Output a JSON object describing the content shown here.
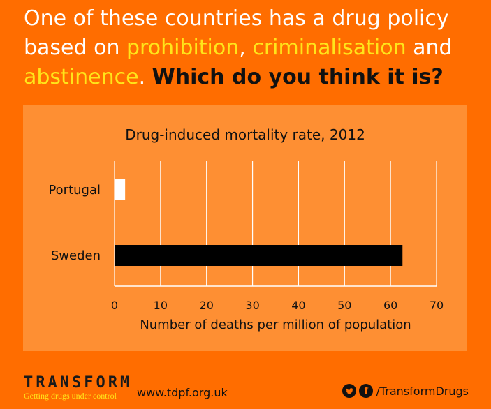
{
  "headline": {
    "part1": "One of these countries has a drug policy based on ",
    "highlight1": "prohibition",
    "sep1": ", ",
    "highlight2": "criminalisation",
    "sep2": " and ",
    "highlight3": "abstinence",
    "sep3": ". ",
    "question": "Which do you think it is?"
  },
  "chart_data": {
    "type": "bar",
    "orientation": "horizontal",
    "title": "Drug-induced mortality rate, 2012",
    "categories": [
      "Portugal",
      "Sweden"
    ],
    "values": [
      2.3,
      62.6
    ],
    "bar_colors": [
      "#ffffff",
      "#000000"
    ],
    "xlabel": "Number of deaths per million of population",
    "ylabel": "",
    "xlim": [
      0,
      70
    ],
    "xticks": [
      "0",
      "10",
      "20",
      "30",
      "40",
      "50",
      "60",
      "70"
    ],
    "grid": true
  },
  "footer": {
    "logo_word": "TRANSFORM",
    "logo_tagline": "Getting drugs under control",
    "url": "www.tdpf.org.uk",
    "twitter_icon": "twitter-icon",
    "facebook_icon": "facebook-icon",
    "social_handle": "/TransformDrugs"
  },
  "colors": {
    "background": "#ff6d00",
    "panel": "#fe8f33",
    "highlight": "#ffe51a"
  }
}
